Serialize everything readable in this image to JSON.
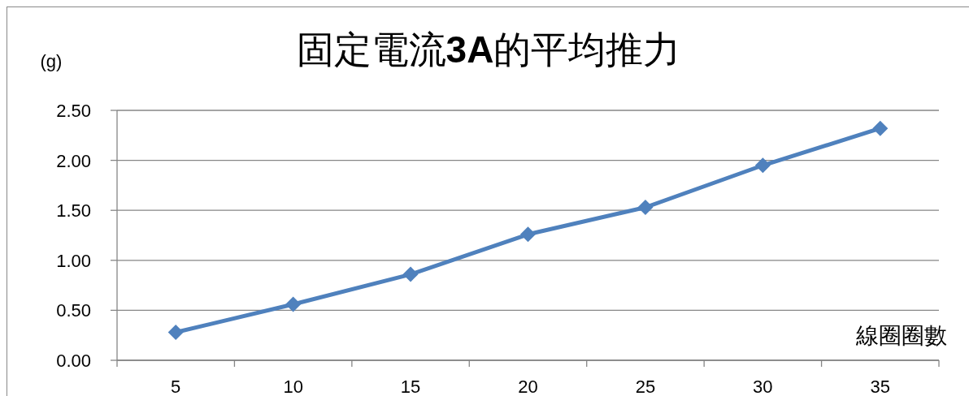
{
  "chart_data": {
    "type": "line",
    "title": "固定電流**3A**的平均推力",
    "ylabel": "(g)",
    "xlabel": "線圈圈數",
    "categories": [
      "5",
      "10",
      "15",
      "20",
      "25",
      "30",
      "35"
    ],
    "series": [
      {
        "color": "#4f81bd",
        "values": [
          0.28,
          0.56,
          0.86,
          1.26,
          1.53,
          1.95,
          2.32
        ]
      }
    ],
    "ylim": [
      0,
      2.5
    ],
    "yticks": [
      {
        "value": 0,
        "label": "0.00"
      },
      {
        "value": 0.5,
        "label": "0.50"
      },
      {
        "value": 1,
        "label": "1.00"
      },
      {
        "value": 1.5,
        "label": "1.50"
      },
      {
        "value": 2,
        "label": "2.00"
      },
      {
        "value": 2.5,
        "label": "2.50"
      }
    ],
    "grid": "y",
    "marker": "diamond"
  }
}
